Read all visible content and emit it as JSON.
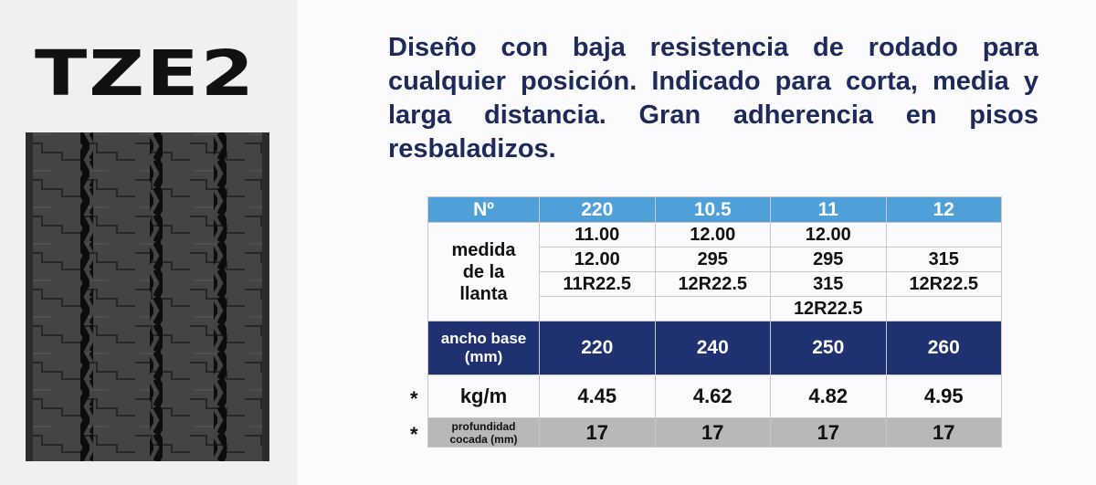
{
  "header": {
    "title": "TZE2"
  },
  "description": "Diseño con baja resistencia de rodado para cualquier posición. Indicado para corta, media y larga distancia. Gran adherencia en pisos resbaladizos.",
  "table": {
    "header": [
      "Nº",
      "220",
      "10.5",
      "11",
      "12"
    ],
    "size_label": "medida de la llanta",
    "sizes": [
      [
        "11.00",
        "12.00",
        "11R22.5"
      ],
      [
        "12.00",
        "295",
        "12R22.5"
      ],
      [
        "12.00",
        "295",
        "315",
        "12R22.5"
      ],
      [
        "315",
        "12R22.5"
      ]
    ],
    "rows": [
      {
        "label": "ancho base (mm)",
        "values": [
          "220",
          "240",
          "250",
          "260"
        ]
      },
      {
        "marker": "*",
        "label": "kg/m",
        "values": [
          "4.45",
          "4.62",
          "4.82",
          "4.95"
        ]
      },
      {
        "marker": "*",
        "label": "profundidad cocada (mm)",
        "values": [
          "17",
          "17",
          "17",
          "17"
        ]
      }
    ]
  }
}
